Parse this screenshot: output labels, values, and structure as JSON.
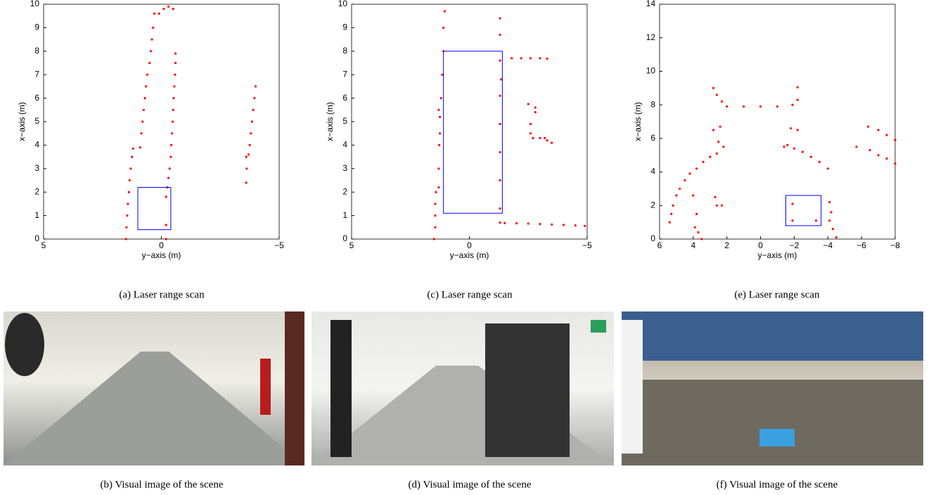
{
  "chart_data": [
    {
      "type": "scatter",
      "xlabel": "y−axis (m)",
      "ylabel": "x−axis (m)",
      "color": "#ff0000",
      "xlim": [
        5,
        -5
      ],
      "ylim": [
        0,
        10
      ],
      "xticks": [
        5,
        0,
        {
          "value": -5,
          "label": "−5"
        }
      ],
      "yticks": [
        0,
        1,
        2,
        3,
        4,
        5,
        6,
        7,
        8,
        9,
        10
      ],
      "x": [
        1.5,
        1.48,
        1.45,
        1.42,
        1.38,
        1.35,
        1.3,
        1.25,
        1.2,
        0.9,
        0.85,
        0.8,
        0.75,
        0.7,
        0.65,
        0.6,
        0.5,
        0.45,
        0.4,
        0.35,
        0.3,
        0.1,
        -0.1,
        -0.2,
        -0.2,
        -0.2,
        -0.25,
        -0.3,
        -0.35,
        -0.4,
        -0.42,
        -0.45,
        -0.48,
        -0.5,
        -0.52,
        -0.55,
        -0.58,
        -0.6,
        -0.6,
        -0.3,
        -0.5,
        -3.6,
        -3.62,
        -3.6,
        -3.7,
        -3.75,
        -3.8,
        -3.85,
        -3.9,
        -3.95,
        -4
      ],
      "values": [
        0,
        0.5,
        1,
        1.5,
        2,
        2.5,
        3,
        3.5,
        3.85,
        3.9,
        4.5,
        5,
        5.5,
        6,
        6.5,
        7,
        7.5,
        8,
        8.5,
        9,
        9.6,
        9.6,
        9.8,
        0,
        0.6,
        1.8,
        2.2,
        2.6,
        3,
        3.5,
        4,
        4.5,
        5,
        5.5,
        6,
        6.5,
        7,
        7.5,
        7.9,
        9.9,
        9.8,
        2.4,
        3,
        3.5,
        3.6,
        4,
        4.5,
        5,
        5.5,
        6,
        6.5
      ],
      "box": {
        "color": "#0000ff",
        "x": [
          1.0,
          -0.4
        ],
        "y": [
          0.4,
          2.2
        ]
      }
    },
    {
      "type": "scatter",
      "xlabel": "y−axis (m)",
      "ylabel": "x−axis (m)",
      "color": "#ff0000",
      "xlim": [
        5,
        -5
      ],
      "ylim": [
        0,
        10
      ],
      "xticks": [
        5,
        0,
        {
          "value": -5,
          "label": "−5"
        }
      ],
      "yticks": [
        0,
        1,
        2,
        3,
        4,
        5,
        6,
        7,
        8,
        9,
        10
      ],
      "x": [
        1.5,
        1.45,
        1.45,
        1.45,
        1.42,
        1.3,
        1.3,
        1.28,
        1.25,
        1.25,
        1.3,
        1.2,
        1.15,
        1.1,
        1.1,
        1.05,
        -1.3,
        -1.3,
        -1.3,
        -1.3,
        -1.3,
        -1.3,
        -1.35,
        -1.3,
        -1.3,
        -1.3,
        -1.5,
        -2,
        -2.5,
        -3,
        -3.5,
        -4,
        -4.5,
        -4.9,
        -1.8,
        -2.2,
        -2.6,
        -3,
        -3.3,
        -2.5,
        -2.8,
        -2.8,
        -2.6,
        -2.6,
        -2.7,
        -3,
        -3.2,
        -3.3,
        -3.5
      ],
      "values": [
        0,
        0.5,
        1,
        1.5,
        2,
        2.2,
        3,
        4,
        4.5,
        5.2,
        5.5,
        6,
        7,
        8,
        9,
        9.7,
        0.7,
        1.3,
        2.5,
        3.7,
        4.9,
        6.1,
        6.8,
        7.6,
        8.7,
        9.4,
        0.68,
        0.67,
        0.66,
        0.64,
        0.62,
        0.6,
        0.58,
        0.56,
        7.7,
        7.7,
        7.7,
        7.7,
        7.68,
        5.75,
        5.6,
        5.4,
        4.9,
        4.5,
        4.3,
        4.3,
        4.3,
        4.2,
        4.1
      ],
      "box": {
        "color": "#0000ff",
        "x": [
          1.1,
          -1.4
        ],
        "y": [
          1.1,
          8
        ]
      }
    },
    {
      "type": "scatter",
      "xlabel": "y−axis (m)",
      "ylabel": "x−axis (m)",
      "color": "#ff0000",
      "xlim": [
        6,
        -8
      ],
      "ylim": [
        0,
        14
      ],
      "xticks": [
        6,
        4,
        2,
        0,
        {
          "value": -2,
          "label": "−2"
        },
        {
          "value": -4,
          "label": "−4"
        },
        {
          "value": -6,
          "label": "−6"
        },
        {
          "value": -8,
          "label": "−8"
        }
      ],
      "yticks": [
        0,
        2,
        4,
        6,
        8,
        10,
        12,
        14
      ],
      "x": [
        2,
        1,
        0,
        -1,
        -1.9,
        -2.2,
        2.3,
        2.6,
        2.8,
        -2.2,
        5.4,
        5.3,
        5.2,
        5,
        4.8,
        4.5,
        4.2,
        3.8,
        3.4,
        3,
        2.6,
        2.2,
        2.5,
        2.8,
        2.4,
        4,
        3.8,
        3.9,
        3.7,
        3.5,
        2.7,
        2.6,
        2.3,
        -1.6,
        -2,
        -2.5,
        -3,
        -3.5,
        -4,
        -1.8,
        -2.2,
        -1.4,
        -5.7,
        -6.4,
        -7,
        -7.5,
        -8,
        -6.5,
        -7,
        -7.5,
        -8,
        -4.1,
        -4.2,
        -4.1,
        -4.3,
        -4.5,
        -1.9,
        -1.9,
        -3.3
      ],
      "values": [
        7.9,
        7.9,
        7.9,
        7.9,
        8,
        8.3,
        8.2,
        8.6,
        9,
        9.05,
        1,
        1.5,
        2,
        2.6,
        3,
        3.5,
        3.9,
        4.2,
        4.6,
        4.9,
        5.1,
        5.5,
        5.8,
        6.5,
        6.7,
        2.6,
        1.5,
        0.7,
        0.4,
        0,
        2.5,
        2,
        2,
        5.6,
        5.4,
        5.2,
        4.9,
        4.6,
        4.2,
        6.6,
        6.5,
        5.5,
        5.5,
        6.7,
        6.5,
        6.2,
        5.9,
        5.3,
        5,
        4.8,
        4.5,
        2.2,
        1.6,
        1.1,
        0.6,
        0.1,
        2.1,
        1.1,
        1.1
      ],
      "box": {
        "color": "#0000ff",
        "x": [
          -1.5,
          -3.6
        ],
        "y": [
          0.8,
          2.6
        ]
      }
    }
  ],
  "captions": [
    "(a) Laser range scan",
    "(c) Laser range scan",
    "(e) Laser range scan",
    "(b) Visual image of the scene",
    "(d) Visual image of the scene",
    "(f) Visual image of the scene"
  ]
}
